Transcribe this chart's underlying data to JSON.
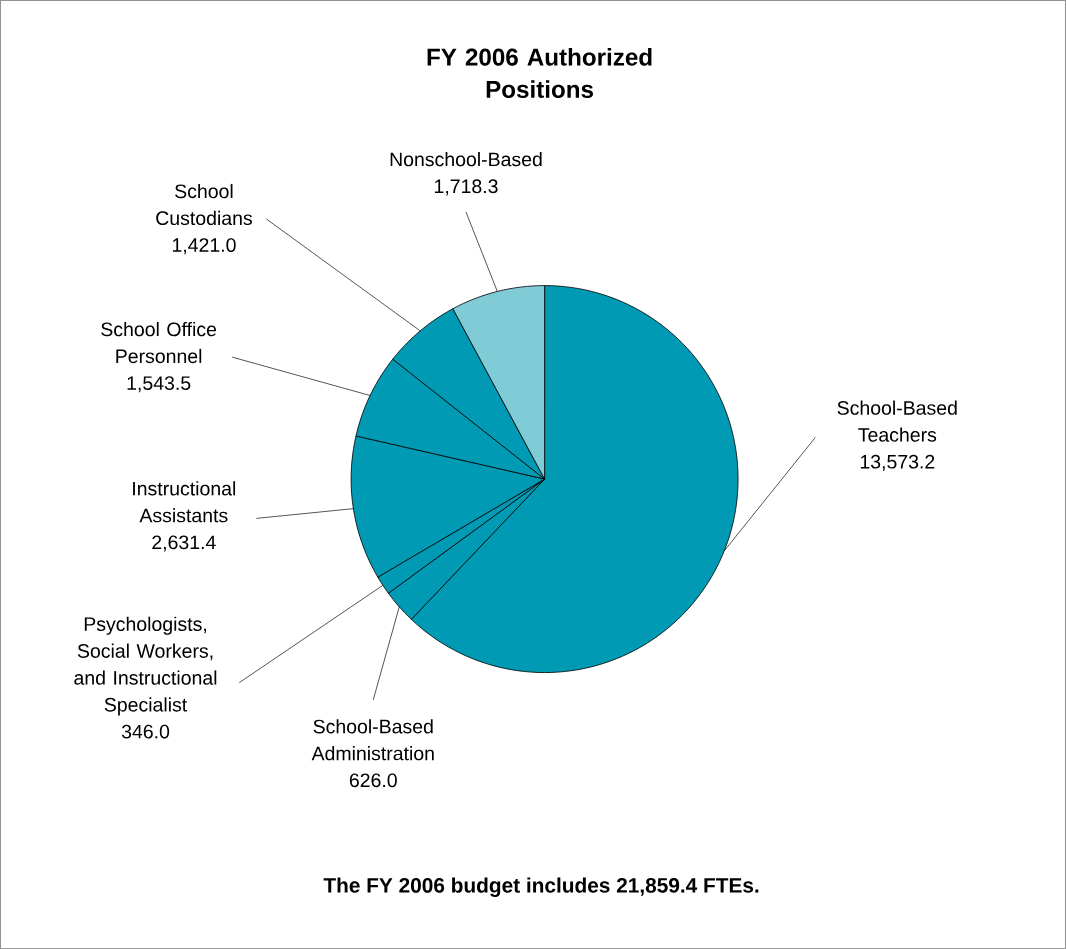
{
  "chart_data": {
    "type": "pie",
    "title": "FY 2006 Authorized Positions",
    "categories": [
      "School-Based Teachers",
      "School-Based Administration",
      "Psychologists, Social Workers, and Instructional Specialist",
      "Instructional Assistants",
      "School Office Personnel",
      "School Custodians",
      "Nonschool-Based"
    ],
    "values": [
      13573.2,
      626.0,
      346.0,
      2631.4,
      1543.5,
      1421.0,
      1718.3
    ],
    "value_labels": [
      "13,573.2",
      "626.0",
      "346.0",
      "2,631.4",
      "1,543.5",
      "1,421.0",
      "1,718.3"
    ],
    "colors": [
      "#009ab4",
      "#009ab4",
      "#009ab4",
      "#009ab4",
      "#009ab4",
      "#009ab4",
      "#7fccd6"
    ],
    "legend": false,
    "annotations": [
      "The FY 2006 budget includes 21,859.4 FTEs."
    ]
  }
}
